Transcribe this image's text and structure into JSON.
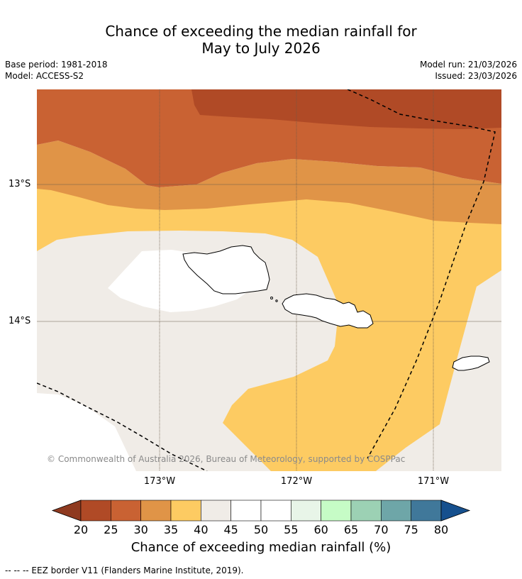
{
  "title": {
    "line1": "Chance of exceeding the median rainfall for",
    "line2": "May to July 2026"
  },
  "meta": {
    "base_period": "Base period: 1981-2018",
    "model": "Model: ACCESS-S2",
    "model_run": "Model run: 21/03/2026",
    "issued": "Issued: 23/03/2026"
  },
  "map": {
    "lat_labels": [
      "13°S",
      "14°S"
    ],
    "lon_labels": [
      "173°W",
      "172°W",
      "171°W"
    ],
    "copyright": "© Commonwealth of Australia 2026, Bureau of Meteorology, supported by COSPPac",
    "colors": {
      "c20_25": "#b04a26",
      "c25_30": "#c96233",
      "c30_35": "#e09447",
      "c35_40": "#fdcb62",
      "c40_45": "#f0ece7",
      "c45_50": "#ffffff"
    }
  },
  "colorbar": {
    "ticks": [
      "20",
      "25",
      "30",
      "35",
      "40",
      "45",
      "50",
      "55",
      "60",
      "65",
      "70",
      "75",
      "80"
    ],
    "colors": [
      "#b04a26",
      "#c96233",
      "#e09447",
      "#fdcb62",
      "#f0ece7",
      "#ffffff",
      "#ffffff",
      "#e8f5e8",
      "#c6fcc6",
      "#9cd1b4",
      "#6ea6a8",
      "#40789a"
    ],
    "under_color": "#8f3a20",
    "over_color": "#16508e",
    "label": "Chance of exceeding median rainfall (%)"
  },
  "footer": "--  --  -- EEZ border V11 (Flanders Marine Institute, 2019)."
}
